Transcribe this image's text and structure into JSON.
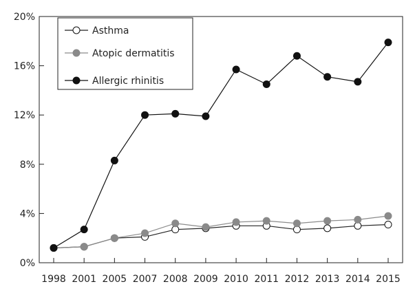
{
  "chart_data": {
    "type": "line",
    "title": "",
    "xlabel": "",
    "ylabel": "",
    "categories": [
      "1998",
      "2001",
      "2005",
      "2007",
      "2008",
      "2009",
      "2010",
      "2011",
      "2012",
      "2013",
      "2014",
      "2015"
    ],
    "ylim": [
      0,
      20
    ],
    "yticks": [
      0,
      4,
      8,
      12,
      16,
      20
    ],
    "ytick_suffix": "%",
    "grid": false,
    "legend_position": "top-left",
    "series": [
      {
        "name": "Asthma",
        "marker": "open-circle",
        "line_color": "#222222",
        "fill_color": "#ffffff",
        "values": [
          1.2,
          1.3,
          2.0,
          2.1,
          2.7,
          2.8,
          3.0,
          3.0,
          2.7,
          2.8,
          3.0,
          3.1
        ]
      },
      {
        "name": "Atopic dermatitis",
        "marker": "grey-circle",
        "line_color": "#8a8a8a",
        "fill_color": "#8a8a8a",
        "values": [
          1.2,
          1.3,
          2.0,
          2.4,
          3.2,
          2.9,
          3.3,
          3.4,
          3.2,
          3.4,
          3.5,
          3.8
        ]
      },
      {
        "name": "Allergic rhinitis",
        "marker": "filled-circle",
        "line_color": "#111111",
        "fill_color": "#111111",
        "values": [
          1.2,
          2.7,
          8.3,
          12.0,
          12.1,
          11.9,
          15.7,
          14.5,
          16.8,
          15.1,
          14.7,
          17.9
        ]
      }
    ]
  }
}
